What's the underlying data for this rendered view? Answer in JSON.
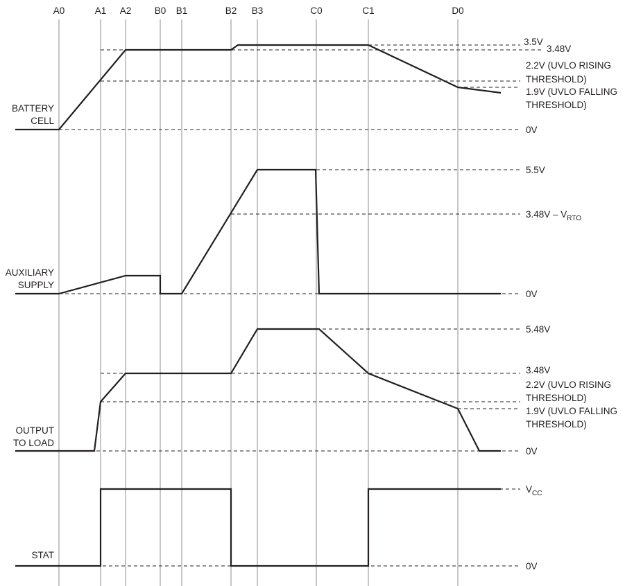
{
  "time_markers": [
    "A0",
    "A1",
    "A2",
    "B0",
    "B1",
    "B2",
    "B3",
    "C0",
    "C1",
    "D0"
  ],
  "signals": {
    "battery": {
      "label_lines": [
        "BATTERY",
        "CELL"
      ],
      "levels": [
        {
          "id": "bat-3v5",
          "lines": [
            "3.5V"
          ]
        },
        {
          "id": "bat-3v48",
          "lines": [
            "3.48V"
          ]
        },
        {
          "id": "bat-2v2",
          "lines": [
            "2.2V (UVLO RISING",
            "THRESHOLD)"
          ]
        },
        {
          "id": "bat-1v9",
          "lines": [
            "1.9V (UVLO FALLING",
            "THRESHOLD)"
          ]
        },
        {
          "id": "bat-0v",
          "lines": [
            "0V"
          ]
        }
      ]
    },
    "auxiliary": {
      "label_lines": [
        "AUXILIARY",
        "SUPPLY"
      ],
      "levels": [
        {
          "id": "aux-5v5",
          "lines": [
            "5.5V"
          ]
        },
        {
          "id": "aux-3v48-vrto",
          "lines": [
            "3.48V – V"
          ],
          "subscript": "RTO"
        },
        {
          "id": "aux-0v",
          "lines": [
            "0V"
          ]
        }
      ]
    },
    "output": {
      "label_lines": [
        "OUTPUT",
        "TO LOAD"
      ],
      "levels": [
        {
          "id": "out-5v48",
          "lines": [
            "5.48V"
          ]
        },
        {
          "id": "out-3v48",
          "lines": [
            "3.48V"
          ]
        },
        {
          "id": "out-2v2",
          "lines": [
            "2.2V (UVLO RISING",
            "THRESHOLD)"
          ]
        },
        {
          "id": "out-1v9",
          "lines": [
            "1.9V (UVLO FALLING",
            "THRESHOLD)"
          ]
        },
        {
          "id": "out-0v",
          "lines": [
            "0V"
          ]
        }
      ]
    },
    "stat": {
      "label_lines": [
        "STAT"
      ],
      "levels": [
        {
          "id": "stat-vcc",
          "lines": [
            "V"
          ],
          "subscript": "CC"
        },
        {
          "id": "stat-0v",
          "lines": [
            "0V"
          ]
        }
      ]
    }
  }
}
